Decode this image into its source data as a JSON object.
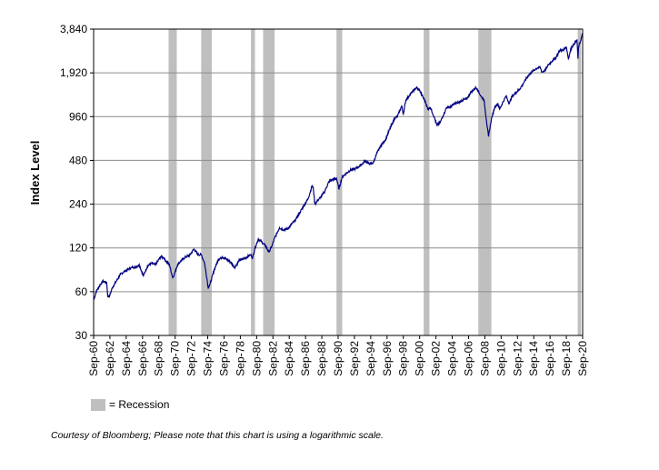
{
  "chart_data": {
    "type": "line",
    "scale": "log",
    "ylabel": "Index Level",
    "ylim": [
      30,
      3840
    ],
    "yticks": [
      30,
      60,
      120,
      240,
      480,
      960,
      1920,
      3840
    ],
    "ytick_labels": [
      "30",
      "60",
      "120",
      "240",
      "480",
      "960",
      "1,920",
      "3,840"
    ],
    "xlim": [
      1960.7,
      2020.7
    ],
    "xtick_labels": [
      "Sep-60",
      "Sep-62",
      "Sep-64",
      "Sep-66",
      "Sep-68",
      "Sep-70",
      "Sep-72",
      "Sep-74",
      "Sep-76",
      "Sep-78",
      "Sep-80",
      "Sep-82",
      "Sep-84",
      "Sep-86",
      "Sep-88",
      "Sep-90",
      "Sep-92",
      "Sep-94",
      "Sep-96",
      "Sep-98",
      "Sep-00",
      "Sep-02",
      "Sep-04",
      "Sep-06",
      "Sep-08",
      "Sep-10",
      "Sep-12",
      "Sep-14",
      "Sep-16",
      "Sep-18",
      "Sep-20"
    ],
    "recessions": [
      [
        1969.9,
        1970.9
      ],
      [
        1973.9,
        1975.2
      ],
      [
        1980.0,
        1980.5
      ],
      [
        1981.5,
        1982.9
      ],
      [
        1990.5,
        1991.2
      ],
      [
        2001.2,
        2001.9
      ],
      [
        2007.9,
        2009.5
      ],
      [
        2020.1,
        2020.5
      ]
    ],
    "series": [
      {
        "color": "#000080",
        "x": [
          1960.75,
          1961.0,
          1961.5,
          1961.9,
          1962.3,
          1962.45,
          1962.7,
          1963.0,
          1963.5,
          1964.0,
          1964.5,
          1965.0,
          1965.4,
          1965.9,
          1966.3,
          1966.8,
          1967.3,
          1967.8,
          1968.3,
          1968.9,
          1969.3,
          1969.6,
          1970.0,
          1970.4,
          1970.6,
          1971.0,
          1971.5,
          1972.0,
          1972.5,
          1973.0,
          1973.5,
          1973.9,
          1974.3,
          1974.6,
          1974.75,
          1975.0,
          1975.5,
          1976.0,
          1976.5,
          1977.0,
          1977.5,
          1978.0,
          1978.6,
          1979.0,
          1979.5,
          1980.0,
          1980.2,
          1980.5,
          1980.9,
          1981.3,
          1981.8,
          1982.2,
          1982.6,
          1982.9,
          1983.5,
          1984.0,
          1984.5,
          1985.0,
          1985.5,
          1986.0,
          1986.5,
          1987.0,
          1987.5,
          1987.65,
          1987.85,
          1988.2,
          1988.6,
          1989.0,
          1989.6,
          1990.0,
          1990.5,
          1990.8,
          1991.2,
          1991.8,
          1992.3,
          1992.8,
          1993.5,
          1994.0,
          1994.5,
          1995.0,
          1995.5,
          1996.0,
          1996.5,
          1997.0,
          1997.6,
          1998.0,
          1998.5,
          1998.7,
          1999.0,
          1999.5,
          2000.0,
          2000.3,
          2000.7,
          2001.0,
          2001.4,
          2001.7,
          2002.0,
          2002.5,
          2002.8,
          2003.2,
          2003.6,
          2004.0,
          2004.5,
          2005.0,
          2005.5,
          2006.0,
          2006.5,
          2007.0,
          2007.6,
          2007.8,
          2008.2,
          2008.6,
          2008.9,
          2009.15,
          2009.5,
          2009.9,
          2010.3,
          2010.5,
          2010.9,
          2011.3,
          2011.7,
          2012.0,
          2012.5,
          2013.0,
          2013.5,
          2014.0,
          2014.5,
          2015.0,
          2015.5,
          2015.7,
          2016.1,
          2016.5,
          2017.0,
          2017.5,
          2018.0,
          2018.1,
          2018.7,
          2018.95,
          2019.3,
          2019.6,
          2020.0,
          2020.13,
          2020.2,
          2020.45,
          2020.7
        ],
        "y": [
          53,
          60,
          67,
          71,
          69,
          55,
          57,
          64,
          71,
          79,
          83,
          86,
          88,
          89,
          92,
          77,
          90,
          94,
          92,
          104,
          103,
          97,
          92,
          75,
          79,
          92,
          99,
          104,
          107,
          118,
          108,
          108,
          95,
          74,
          64,
          68,
          85,
          100,
          104,
          100,
          96,
          88,
          99,
          100,
          104,
          108,
          102,
          120,
          138,
          132,
          124,
          112,
          125,
          140,
          165,
          160,
          162,
          175,
          188,
          210,
          235,
          260,
          320,
          310,
          240,
          255,
          270,
          290,
          345,
          355,
          360,
          305,
          370,
          395,
          415,
          420,
          445,
          475,
          455,
          460,
          545,
          615,
          665,
          780,
          930,
          970,
          1135,
          1000,
          1245,
          1360,
          1460,
          1520,
          1450,
          1340,
          1220,
          1080,
          1115,
          950,
          840,
          870,
          980,
          1110,
          1120,
          1180,
          1200,
          1250,
          1270,
          1420,
          1520,
          1480,
          1330,
          1250,
          900,
          700,
          920,
          1110,
          1180,
          1080,
          1200,
          1330,
          1180,
          1310,
          1400,
          1490,
          1650,
          1830,
          1950,
          2060,
          2100,
          1940,
          2000,
          2180,
          2330,
          2480,
          2800,
          2700,
          2900,
          2400,
          2850,
          3000,
          3230,
          2400,
          2900,
          3180,
          3600
        ]
      }
    ]
  },
  "legend": {
    "label": "= Recession",
    "swatch_color": "#bfbfbf"
  },
  "footnote": "Courtesy of Bloomberg; Please note that this chart is using a logarithmic scale."
}
